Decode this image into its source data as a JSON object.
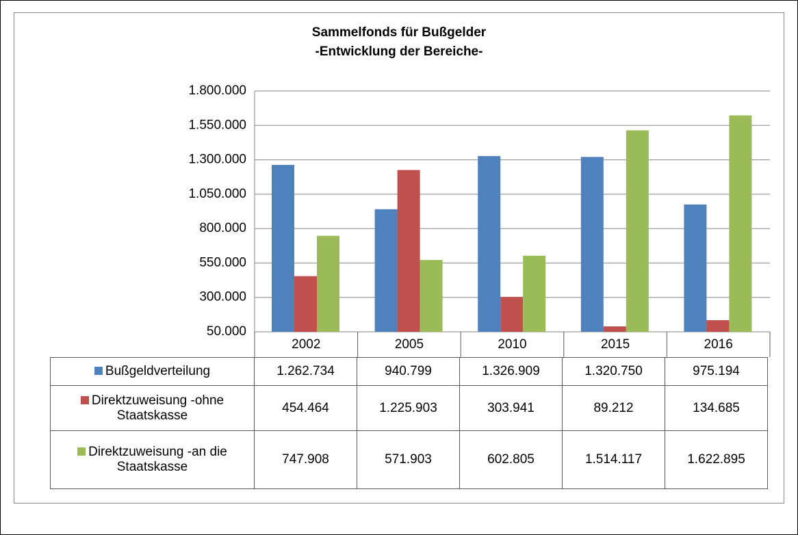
{
  "chart_data": {
    "type": "bar",
    "title": "Sammelfonds für Bußgelder",
    "subtitle": "-Entwicklung der Bereiche-",
    "categories": [
      "2002",
      "2005",
      "2010",
      "2015",
      "2016"
    ],
    "series": [
      {
        "name": "Bußgeldverteilung",
        "color": "#4f81bd",
        "values": [
          1262734,
          940799,
          1326909,
          1320750,
          975194
        ],
        "value_labels": [
          "1.262.734",
          "940.799",
          "1.326.909",
          "1.320.750",
          "975.194"
        ]
      },
      {
        "name": "Direktzuweisung -ohne Staatskasse",
        "color": "#c0504d",
        "values": [
          454464,
          1225903,
          303941,
          89212,
          134685
        ],
        "value_labels": [
          "454.464",
          "1.225.903",
          "303.941",
          "89.212",
          "134.685"
        ]
      },
      {
        "name": "Direktzuweisung -an die Staatskasse",
        "color": "#9bbb59",
        "values": [
          747908,
          571903,
          602805,
          1514117,
          1622895
        ],
        "value_labels": [
          "747.908",
          "571.903",
          "602.805",
          "1.514.117",
          "1.622.895"
        ]
      }
    ],
    "ylim": [
      50000,
      1800000
    ],
    "yticks": [
      {
        "value": 50000,
        "label": "50.000"
      },
      {
        "value": 300000,
        "label": "300.000"
      },
      {
        "value": 550000,
        "label": "550.000"
      },
      {
        "value": 800000,
        "label": "800.000"
      },
      {
        "value": 1050000,
        "label": "1.050.000"
      },
      {
        "value": 1300000,
        "label": "1.300.000"
      },
      {
        "value": 1550000,
        "label": "1.550.000"
      },
      {
        "value": 1800000,
        "label": "1.800.000"
      }
    ],
    "grid": true
  }
}
